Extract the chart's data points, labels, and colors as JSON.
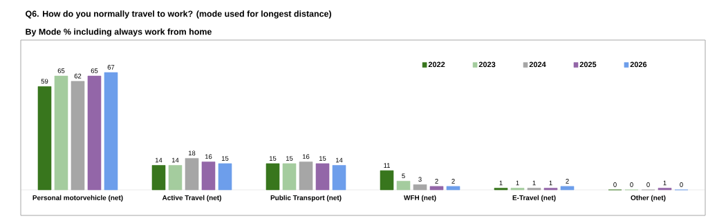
{
  "chart_data": {
    "type": "bar",
    "title": "Q6.    How do you normally travel to work? (mode used for longest distance)",
    "subtitle": "By Mode % including always work from home",
    "categories": [
      "Personal motorvehicle (net)",
      "Active Travel (net)",
      "Public Transport (net)",
      "WFH (net)",
      "E-Travel (net)",
      "Other (net)"
    ],
    "series": [
      {
        "name": "2022",
        "color": "#38761d",
        "values": [
          59,
          14,
          15,
          11,
          1,
          0
        ]
      },
      {
        "name": "2023",
        "color": "#a4cc9e",
        "values": [
          65,
          14,
          15,
          5,
          1,
          0
        ]
      },
      {
        "name": "2024",
        "color": "#a6a6a6",
        "values": [
          62,
          18,
          16,
          3,
          1,
          0
        ]
      },
      {
        "name": "2025",
        "color": "#9366a8",
        "values": [
          65,
          16,
          15,
          2,
          1,
          1
        ]
      },
      {
        "name": "2026",
        "color": "#6d9eeb",
        "values": [
          67,
          15,
          14,
          2,
          2,
          0
        ]
      }
    ],
    "data_labels": true,
    "legend": "top right"
  }
}
